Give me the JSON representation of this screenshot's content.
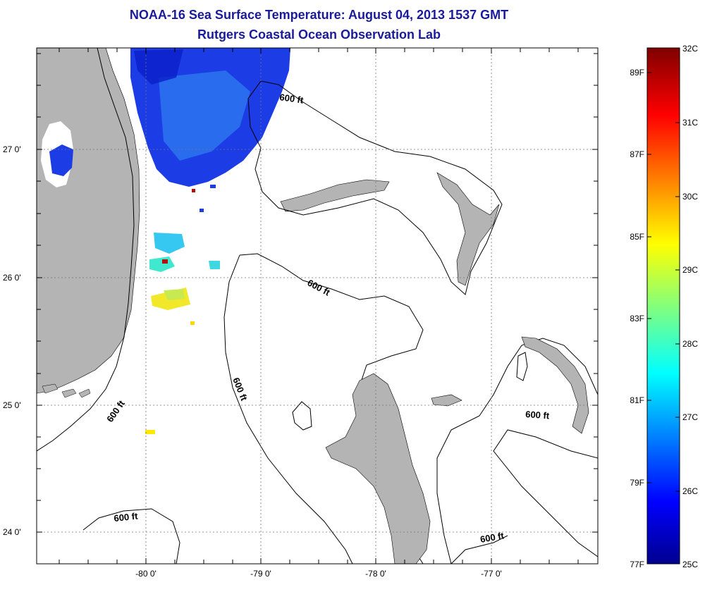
{
  "title": "NOAA-16 Sea Surface Temperature:  August 04, 2013 1537 GMT",
  "subtitle": "Rutgers Coastal Ocean Observation Lab",
  "axes": {
    "lon_labels": [
      "-80 0'",
      "-79 0'",
      "-78 0'",
      "-77 0'"
    ],
    "lat_labels": [
      "27 0'",
      "26 0'",
      "25 0'",
      "24 0'"
    ]
  },
  "contour_labels": [
    "600 ft",
    "600 ft",
    "600 ft",
    "600 ft",
    "600 ft",
    "600 ft"
  ],
  "colorbar": {
    "celsius_labels": [
      "32C",
      "31C",
      "30C",
      "29C",
      "28C",
      "27C",
      "26C",
      "25C"
    ],
    "fahrenheit_labels": [
      "89F",
      "87F",
      "85F",
      "83F",
      "81F",
      "79F",
      "77F"
    ],
    "range_c": [
      25,
      32
    ],
    "colormap": "jet"
  },
  "colors": {
    "title": "#1a1a9c",
    "land": "#b4b4b4",
    "cold_sst": "#1030e0",
    "warm_sst": "#ffe800"
  }
}
